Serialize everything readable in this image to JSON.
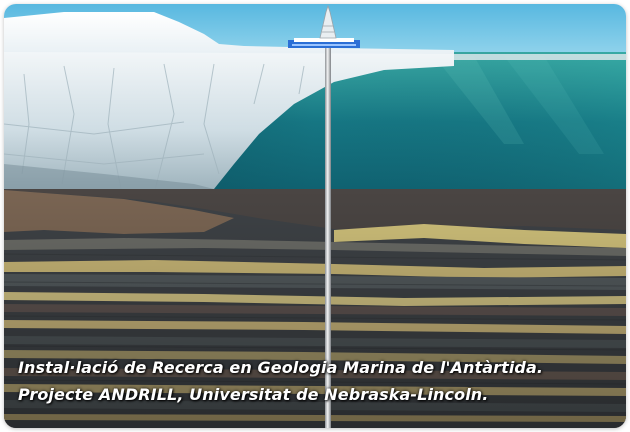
{
  "image": {
    "subject": "drill-rig-on-ice-shelf-cross-section",
    "colors": {
      "sky": "#6fc6e6",
      "ice": "#dfe9ee",
      "ocean_deep": "#0f5f6c",
      "ocean_light": "#2fa3a8",
      "sediment_yellow": "#cfc07a",
      "sediment_dark": "#3e4246",
      "drill_pipe": "#c9ccd0",
      "rig_blue": "#2b6fd6"
    }
  },
  "caption": {
    "line1": "Instal·lació de Recerca en Geologia Marina de l'Antàrtida.",
    "line2": "Projecte ANDRILL, Universitat de Nebraska-Lincoln."
  }
}
